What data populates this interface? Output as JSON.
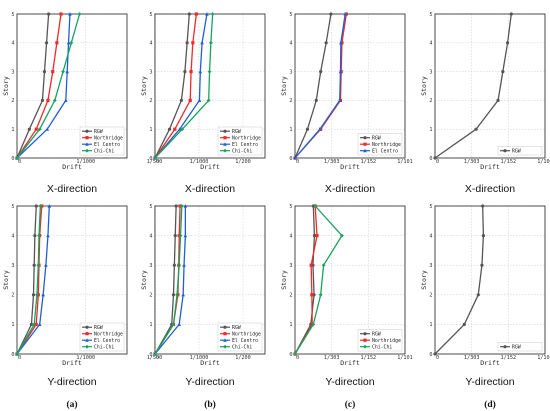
{
  "colors": {
    "RGW": "#555555",
    "Northridge": "#ee2a2a",
    "El Centro": "#1f5fd6",
    "Chi-Chi": "#17a35b"
  },
  "panel_labels": [
    "(a)",
    "(b)",
    "(c)",
    "(d)"
  ],
  "chart_data": [
    {
      "type": "line",
      "col": 0,
      "row": 0,
      "caption": "X-direction",
      "xlabel": "Drift",
      "ylabel": "Story",
      "xticks": [
        "0",
        "1/1000",
        "1/500"
      ],
      "yticks": [
        "0",
        "1",
        "2",
        "3",
        "4",
        "5"
      ],
      "xlim": [
        0,
        1.6
      ],
      "ylim": [
        0,
        5
      ],
      "legend": "bottom-right",
      "series": [
        {
          "name": "RGW",
          "values": [
            [
              0,
              0
            ],
            [
              0.18,
              1
            ],
            [
              0.37,
              2
            ],
            [
              0.4,
              3
            ],
            [
              0.43,
              4
            ],
            [
              0.46,
              5
            ]
          ]
        },
        {
          "name": "Northridge",
          "values": [
            [
              0,
              0
            ],
            [
              0.28,
              1
            ],
            [
              0.45,
              2
            ],
            [
              0.52,
              3
            ],
            [
              0.58,
              4
            ],
            [
              0.64,
              5
            ]
          ]
        },
        {
          "name": "El Centro",
          "values": [
            [
              0,
              0
            ],
            [
              0.44,
              1
            ],
            [
              0.71,
              2
            ],
            [
              0.73,
              3
            ],
            [
              0.75,
              4
            ],
            [
              0.77,
              5
            ]
          ]
        },
        {
          "name": "Chi-Chi",
          "values": [
            [
              0,
              0
            ],
            [
              0.33,
              1
            ],
            [
              0.55,
              2
            ],
            [
              0.67,
              3
            ],
            [
              0.79,
              4
            ],
            [
              0.91,
              5
            ]
          ]
        }
      ]
    },
    {
      "type": "line",
      "col": 1,
      "row": 0,
      "caption": "X-direction",
      "xlabel": "Drift",
      "ylabel": "Story",
      "xticks": [
        "0",
        "1/1000",
        "1/200"
      ],
      "yticks": [
        "0",
        "1",
        "2",
        "3",
        "4",
        "5"
      ],
      "xlim": [
        0,
        2.5
      ],
      "ylim": [
        0,
        5
      ],
      "legend": "bottom-right",
      "series": [
        {
          "name": "RGW",
          "values": [
            [
              0,
              0
            ],
            [
              0.33,
              1
            ],
            [
              0.6,
              2
            ],
            [
              0.68,
              3
            ],
            [
              0.73,
              4
            ],
            [
              0.78,
              5
            ]
          ]
        },
        {
          "name": "Northridge",
          "values": [
            [
              0,
              0
            ],
            [
              0.45,
              1
            ],
            [
              0.8,
              2
            ],
            [
              0.82,
              3
            ],
            [
              0.86,
              4
            ],
            [
              0.94,
              5
            ]
          ]
        },
        {
          "name": "El Centro",
          "values": [
            [
              0,
              0
            ],
            [
              0.56,
              1
            ],
            [
              1.01,
              2
            ],
            [
              1.03,
              3
            ],
            [
              1.07,
              4
            ],
            [
              1.18,
              5
            ]
          ]
        },
        {
          "name": "Chi-Chi",
          "values": [
            [
              0,
              0
            ],
            [
              0.62,
              1
            ],
            [
              1.22,
              2
            ],
            [
              1.24,
              3
            ],
            [
              1.27,
              4
            ],
            [
              1.31,
              5
            ]
          ]
        }
      ]
    },
    {
      "type": "line",
      "col": 2,
      "row": 0,
      "caption": "X-direction",
      "xlabel": "Drift",
      "ylabel": "Story",
      "xticks": [
        "0",
        "1/303",
        "1/152",
        "1/101"
      ],
      "yticks": [
        "0",
        "1",
        "2",
        "3",
        "4",
        "5"
      ],
      "xlim": [
        0,
        3
      ],
      "ylim": [
        0,
        5
      ],
      "legend": "bottom-right",
      "series": [
        {
          "name": "RGW",
          "values": [
            [
              0,
              0
            ],
            [
              0.34,
              1
            ],
            [
              0.58,
              2
            ],
            [
              0.7,
              3
            ],
            [
              0.85,
              4
            ],
            [
              0.98,
              5
            ]
          ]
        },
        {
          "name": "Northridge",
          "values": [
            [
              0,
              0
            ],
            [
              0.7,
              1
            ],
            [
              1.24,
              2
            ],
            [
              1.26,
              3
            ],
            [
              1.28,
              4
            ],
            [
              1.4,
              5
            ]
          ]
        },
        {
          "name": "El Centro",
          "values": [
            [
              0,
              0
            ],
            [
              0.68,
              1
            ],
            [
              1.22,
              2
            ],
            [
              1.24,
              3
            ],
            [
              1.25,
              4
            ],
            [
              1.37,
              5
            ]
          ]
        }
      ]
    },
    {
      "type": "line",
      "col": 3,
      "row": 0,
      "caption": "X-direction",
      "xlabel": "Drift",
      "ylabel": "Story",
      "xticks": [
        "0",
        "1/303",
        "1/152",
        "1/101"
      ],
      "yticks": [
        "0",
        "1",
        "2",
        "3",
        "4",
        "5"
      ],
      "xlim": [
        0,
        3
      ],
      "ylim": [
        0,
        5
      ],
      "legend": "bottom-right",
      "series": [
        {
          "name": "RGW",
          "values": [
            [
              0,
              0
            ],
            [
              1.12,
              1
            ],
            [
              1.72,
              2
            ],
            [
              1.85,
              3
            ],
            [
              1.98,
              4
            ],
            [
              2.08,
              5
            ]
          ]
        }
      ]
    },
    {
      "type": "line",
      "col": 0,
      "row": 1,
      "caption": "Y-direction",
      "xlabel": "Drift",
      "ylabel": "Story",
      "xticks": [
        "0",
        "1/1000",
        "1/500"
      ],
      "yticks": [
        "0",
        "1",
        "2",
        "3",
        "4",
        "5"
      ],
      "xlim": [
        0,
        1.6
      ],
      "ylim": [
        0,
        5
      ],
      "legend": "bottom-right",
      "series": [
        {
          "name": "RGW",
          "values": [
            [
              0,
              0
            ],
            [
              0.21,
              1
            ],
            [
              0.24,
              2
            ],
            [
              0.25,
              3
            ],
            [
              0.26,
              4
            ],
            [
              0.28,
              5
            ]
          ]
        },
        {
          "name": "Northridge",
          "values": [
            [
              0,
              0
            ],
            [
              0.28,
              1
            ],
            [
              0.31,
              2
            ],
            [
              0.32,
              3
            ],
            [
              0.33,
              4
            ],
            [
              0.36,
              5
            ]
          ]
        },
        {
          "name": "El Centro",
          "values": [
            [
              0,
              0
            ],
            [
              0.33,
              1
            ],
            [
              0.38,
              2
            ],
            [
              0.42,
              3
            ],
            [
              0.45,
              4
            ],
            [
              0.47,
              5
            ]
          ]
        },
        {
          "name": "Chi-Chi",
          "values": [
            [
              0,
              0
            ],
            [
              0.25,
              1
            ],
            [
              0.29,
              2
            ],
            [
              0.31,
              3
            ],
            [
              0.32,
              4
            ],
            [
              0.34,
              5
            ]
          ]
        }
      ]
    },
    {
      "type": "line",
      "col": 1,
      "row": 1,
      "caption": "Y-direction",
      "xlabel": "Drift",
      "ylabel": "Story",
      "xticks": [
        "0",
        "1/1000",
        "1/200"
      ],
      "yticks": [
        "0",
        "1",
        "2",
        "3",
        "4",
        "5"
      ],
      "xlim": [
        0,
        2.5
      ],
      "ylim": [
        0,
        5
      ],
      "legend": "bottom-right",
      "series": [
        {
          "name": "RGW",
          "values": [
            [
              0,
              0
            ],
            [
              0.38,
              1
            ],
            [
              0.42,
              2
            ],
            [
              0.44,
              3
            ],
            [
              0.46,
              4
            ],
            [
              0.48,
              5
            ]
          ]
        },
        {
          "name": "Northridge",
          "values": [
            [
              0,
              0
            ],
            [
              0.42,
              1
            ],
            [
              0.52,
              2
            ],
            [
              0.54,
              3
            ],
            [
              0.55,
              4
            ],
            [
              0.57,
              5
            ]
          ]
        },
        {
          "name": "El Centro",
          "values": [
            [
              0,
              0
            ],
            [
              0.55,
              1
            ],
            [
              0.64,
              2
            ],
            [
              0.66,
              3
            ],
            [
              0.69,
              4
            ],
            [
              0.69,
              5
            ]
          ]
        },
        {
          "name": "Chi-Chi",
          "values": [
            [
              0,
              0
            ],
            [
              0.42,
              1
            ],
            [
              0.5,
              2
            ],
            [
              0.55,
              3
            ],
            [
              0.58,
              4
            ],
            [
              0.61,
              5
            ]
          ]
        }
      ]
    },
    {
      "type": "line",
      "col": 2,
      "row": 1,
      "caption": "Y-direction",
      "xlabel": "Drift",
      "ylabel": "Story",
      "xticks": [
        "0",
        "1/303",
        "1/152",
        "1/101"
      ],
      "yticks": [
        "0",
        "1",
        "2",
        "3",
        "4",
        "5"
      ],
      "xlim": [
        0,
        3
      ],
      "ylim": [
        0,
        5
      ],
      "legend": "bottom-right",
      "series": [
        {
          "name": "RGW",
          "values": [
            [
              0,
              0
            ],
            [
              0.43,
              1
            ],
            [
              0.52,
              2
            ],
            [
              0.49,
              3
            ],
            [
              0.53,
              4
            ],
            [
              0.5,
              5
            ]
          ]
        },
        {
          "name": "Northridge",
          "values": [
            [
              0,
              0
            ],
            [
              0.47,
              1
            ],
            [
              0.46,
              2
            ],
            [
              0.44,
              3
            ],
            [
              0.6,
              4
            ],
            [
              0.55,
              5
            ]
          ]
        },
        {
          "name": "Chi-Chi",
          "values": [
            [
              0,
              0
            ],
            [
              0.5,
              1
            ],
            [
              0.7,
              2
            ],
            [
              0.78,
              3
            ],
            [
              1.28,
              4
            ],
            [
              0.55,
              5
            ]
          ]
        }
      ]
    },
    {
      "type": "line",
      "col": 3,
      "row": 1,
      "caption": "Y-direction",
      "xlabel": "Drift",
      "ylabel": "Story",
      "xticks": [
        "0",
        "1/303",
        "1/152",
        "1/101"
      ],
      "yticks": [
        "0",
        "1",
        "2",
        "3",
        "4",
        "5"
      ],
      "xlim": [
        0,
        3
      ],
      "ylim": [
        0,
        5
      ],
      "legend": "bottom-right",
      "series": [
        {
          "name": "RGW",
          "values": [
            [
              0,
              0
            ],
            [
              0.8,
              1
            ],
            [
              1.18,
              2
            ],
            [
              1.28,
              3
            ],
            [
              1.32,
              4
            ],
            [
              1.3,
              5
            ]
          ]
        }
      ]
    }
  ]
}
